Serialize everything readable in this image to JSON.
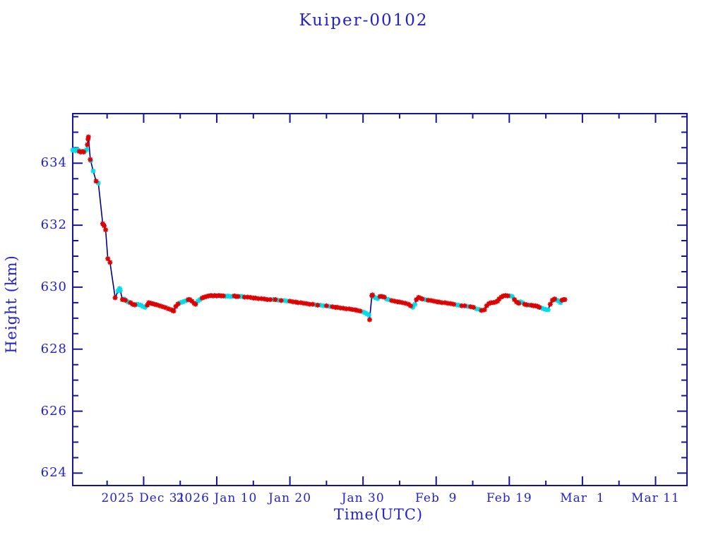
{
  "title": "Kuiper-00102",
  "colors": {
    "axis": "#15159a",
    "text": "#2222cc",
    "line": "#00008b",
    "marker_red": "#dd0000",
    "marker_cyan": "#00dde8",
    "background": "#ffffff"
  },
  "chart_data": {
    "type": "line",
    "title": "Kuiper-00102",
    "xlabel": "Time(UTC)",
    "ylabel": "Height (km)",
    "x_unit": "days relative to 2025 Dec 31",
    "xlim": [
      -9.7,
      74.3
    ],
    "ylim": [
      623.6,
      635.6
    ],
    "grid": false,
    "legend": "none",
    "x_major_ticks": [
      {
        "t": 0,
        "label": "2025 Dec 31"
      },
      {
        "t": 10,
        "label": "2026 Jan 10"
      },
      {
        "t": 20,
        "label": "Jan 20"
      },
      {
        "t": 30,
        "label": "Jan 30"
      },
      {
        "t": 40,
        "label": "Feb  9"
      },
      {
        "t": 50,
        "label": "Feb 19"
      },
      {
        "t": 60,
        "label": "Mar  1"
      },
      {
        "t": 70,
        "label": "Mar 11"
      }
    ],
    "x_minor_ticks": [
      -5,
      5,
      15,
      25,
      35,
      45,
      55,
      65
    ],
    "y_major_ticks": [
      {
        "v": 624,
        "label": "624"
      },
      {
        "v": 626,
        "label": "626"
      },
      {
        "v": 628,
        "label": "628"
      },
      {
        "v": 630,
        "label": "630"
      },
      {
        "v": 632,
        "label": "632"
      },
      {
        "v": 634,
        "label": "634"
      }
    ],
    "y_minor_step": 0.5,
    "series": [
      {
        "name": "height",
        "marker": "asterisk",
        "points": [
          [
            -9.7,
            634.42,
            "c"
          ],
          [
            -9.5,
            634.44,
            "c"
          ],
          [
            -9.3,
            634.4,
            "c"
          ],
          [
            -9.1,
            634.44,
            "c"
          ],
          [
            -8.9,
            634.42,
            "c"
          ],
          [
            -8.8,
            634.38,
            "r"
          ],
          [
            -8.6,
            634.36,
            "r"
          ],
          [
            -8.4,
            634.38,
            "r"
          ],
          [
            -8.2,
            634.36,
            "r"
          ],
          [
            -8.0,
            634.4,
            "c"
          ],
          [
            -7.8,
            634.44,
            "c"
          ],
          [
            -7.7,
            634.6,
            "r"
          ],
          [
            -7.6,
            634.78,
            "r"
          ],
          [
            -7.55,
            634.85,
            "r"
          ],
          [
            -7.3,
            634.12,
            "r"
          ],
          [
            -7.25,
            634.08,
            "c"
          ],
          [
            -6.9,
            633.75,
            "c"
          ],
          [
            -6.5,
            633.42,
            "r"
          ],
          [
            -6.2,
            633.36,
            "c"
          ],
          [
            -5.6,
            632.05,
            "r"
          ],
          [
            -5.4,
            631.98,
            "r"
          ],
          [
            -5.2,
            631.85,
            "r"
          ],
          [
            -4.9,
            630.92,
            "r"
          ],
          [
            -4.6,
            630.8,
            "r"
          ],
          [
            -3.9,
            629.66,
            "r"
          ],
          [
            -3.5,
            629.88,
            "c"
          ],
          [
            -3.3,
            629.96,
            "c"
          ],
          [
            -3.2,
            629.9,
            "c"
          ],
          [
            -2.9,
            629.6,
            "r"
          ],
          [
            -2.7,
            629.62,
            "c"
          ],
          [
            -2.5,
            629.58,
            "r"
          ],
          [
            -2.3,
            629.55,
            "c"
          ],
          [
            -2.1,
            629.52,
            "c"
          ],
          [
            -1.8,
            629.5,
            "r"
          ],
          [
            -1.5,
            629.45,
            "r"
          ],
          [
            -1.2,
            629.43,
            "r"
          ],
          [
            -1.0,
            629.45,
            "c"
          ],
          [
            -0.7,
            629.44,
            "c"
          ],
          [
            -0.4,
            629.42,
            "c"
          ],
          [
            -0.1,
            629.38,
            "c"
          ],
          [
            0.2,
            629.35,
            "c"
          ],
          [
            0.5,
            629.42,
            "r"
          ],
          [
            0.7,
            629.5,
            "r"
          ],
          [
            1.0,
            629.48,
            "r"
          ],
          [
            1.3,
            629.46,
            "r"
          ],
          [
            1.5,
            629.45,
            "r"
          ],
          [
            1.8,
            629.43,
            "r"
          ],
          [
            2.2,
            629.4,
            "r"
          ],
          [
            2.6,
            629.37,
            "r"
          ],
          [
            3.0,
            629.34,
            "r"
          ],
          [
            3.4,
            629.3,
            "r"
          ],
          [
            3.8,
            629.27,
            "r"
          ],
          [
            4.1,
            629.23,
            "r"
          ],
          [
            4.4,
            629.38,
            "r"
          ],
          [
            4.7,
            629.46,
            "r"
          ],
          [
            5.0,
            629.5,
            "c"
          ],
          [
            5.3,
            629.52,
            "c"
          ],
          [
            5.6,
            629.55,
            "c"
          ],
          [
            5.9,
            629.57,
            "c"
          ],
          [
            6.1,
            629.6,
            "r"
          ],
          [
            6.3,
            629.6,
            "r"
          ],
          [
            6.6,
            629.55,
            "r"
          ],
          [
            6.9,
            629.48,
            "r"
          ],
          [
            7.1,
            629.45,
            "r"
          ],
          [
            7.4,
            629.55,
            "c"
          ],
          [
            7.7,
            629.6,
            "c"
          ],
          [
            8.0,
            629.65,
            "r"
          ],
          [
            8.3,
            629.68,
            "r"
          ],
          [
            8.6,
            629.7,
            "r"
          ],
          [
            8.9,
            629.72,
            "r"
          ],
          [
            9.2,
            629.73,
            "r"
          ],
          [
            9.5,
            629.72,
            "r"
          ],
          [
            9.7,
            629.73,
            "r"
          ],
          [
            10.0,
            629.72,
            "r"
          ],
          [
            10.3,
            629.73,
            "r"
          ],
          [
            10.6,
            629.72,
            "r"
          ],
          [
            10.9,
            629.72,
            "r"
          ],
          [
            11.2,
            629.7,
            "c"
          ],
          [
            11.5,
            629.72,
            "c"
          ],
          [
            11.8,
            629.7,
            "c"
          ],
          [
            12.1,
            629.7,
            "c"
          ],
          [
            12.4,
            629.72,
            "r"
          ],
          [
            12.6,
            629.7,
            "r"
          ],
          [
            12.9,
            629.7,
            "r"
          ],
          [
            13.2,
            629.7,
            "c"
          ],
          [
            13.5,
            629.7,
            "c"
          ],
          [
            13.8,
            629.68,
            "r"
          ],
          [
            14.2,
            629.68,
            "r"
          ],
          [
            14.6,
            629.67,
            "r"
          ],
          [
            15.0,
            629.65,
            "r"
          ],
          [
            15.3,
            629.65,
            "r"
          ],
          [
            15.7,
            629.63,
            "r"
          ],
          [
            16.1,
            629.63,
            "r"
          ],
          [
            16.5,
            629.62,
            "r"
          ],
          [
            16.9,
            629.6,
            "r"
          ],
          [
            17.3,
            629.6,
            "r"
          ],
          [
            17.7,
            629.6,
            "c"
          ],
          [
            18.0,
            629.6,
            "r"
          ],
          [
            18.4,
            629.58,
            "c"
          ],
          [
            18.8,
            629.57,
            "r"
          ],
          [
            19.2,
            629.57,
            "c"
          ],
          [
            19.6,
            629.55,
            "c"
          ],
          [
            20.0,
            629.55,
            "r"
          ],
          [
            20.4,
            629.53,
            "r"
          ],
          [
            20.8,
            629.52,
            "r"
          ],
          [
            21.1,
            629.5,
            "r"
          ],
          [
            21.5,
            629.5,
            "r"
          ],
          [
            21.9,
            629.48,
            "r"
          ],
          [
            22.3,
            629.47,
            "r"
          ],
          [
            22.7,
            629.45,
            "r"
          ],
          [
            23.1,
            629.45,
            "r"
          ],
          [
            23.5,
            629.43,
            "c"
          ],
          [
            23.8,
            629.42,
            "r"
          ],
          [
            24.2,
            629.42,
            "c"
          ],
          [
            24.6,
            629.4,
            "c"
          ],
          [
            25.0,
            629.4,
            "r"
          ],
          [
            25.4,
            629.38,
            "c"
          ],
          [
            25.8,
            629.37,
            "r"
          ],
          [
            26.2,
            629.35,
            "r"
          ],
          [
            26.5,
            629.35,
            "r"
          ],
          [
            26.9,
            629.33,
            "r"
          ],
          [
            27.3,
            629.32,
            "r"
          ],
          [
            27.7,
            629.3,
            "r"
          ],
          [
            28.1,
            629.3,
            "r"
          ],
          [
            28.5,
            629.28,
            "r"
          ],
          [
            28.9,
            629.27,
            "r"
          ],
          [
            29.2,
            629.25,
            "r"
          ],
          [
            29.6,
            629.23,
            "r"
          ],
          [
            30.0,
            629.2,
            "c"
          ],
          [
            30.3,
            629.17,
            "c"
          ],
          [
            30.6,
            629.13,
            "c"
          ],
          [
            30.8,
            629.1,
            "c"
          ],
          [
            30.9,
            628.95,
            "r"
          ],
          [
            31.2,
            629.73,
            "r"
          ],
          [
            31.3,
            629.75,
            "r"
          ],
          [
            31.5,
            629.68,
            "c"
          ],
          [
            31.8,
            629.65,
            "c"
          ],
          [
            32.0,
            629.63,
            "c"
          ],
          [
            32.3,
            629.7,
            "r"
          ],
          [
            32.6,
            629.7,
            "r"
          ],
          [
            32.9,
            629.68,
            "r"
          ],
          [
            33.2,
            629.62,
            "c"
          ],
          [
            33.5,
            629.6,
            "c"
          ],
          [
            33.9,
            629.57,
            "r"
          ],
          [
            34.3,
            629.55,
            "r"
          ],
          [
            34.7,
            629.53,
            "r"
          ],
          [
            35.0,
            629.52,
            "r"
          ],
          [
            35.4,
            629.5,
            "r"
          ],
          [
            35.8,
            629.48,
            "r"
          ],
          [
            36.2,
            629.45,
            "r"
          ],
          [
            36.5,
            629.4,
            "r"
          ],
          [
            36.8,
            629.35,
            "c"
          ],
          [
            37.1,
            629.45,
            "c"
          ],
          [
            37.3,
            629.6,
            "r"
          ],
          [
            37.6,
            629.67,
            "r"
          ],
          [
            37.8,
            629.65,
            "r"
          ],
          [
            38.1,
            629.62,
            "r"
          ],
          [
            38.5,
            629.6,
            "c"
          ],
          [
            38.9,
            629.58,
            "r"
          ],
          [
            39.3,
            629.57,
            "r"
          ],
          [
            39.7,
            629.55,
            "r"
          ],
          [
            40.1,
            629.53,
            "r"
          ],
          [
            40.4,
            629.52,
            "r"
          ],
          [
            40.8,
            629.5,
            "r"
          ],
          [
            41.2,
            629.5,
            "r"
          ],
          [
            41.6,
            629.48,
            "r"
          ],
          [
            42.0,
            629.47,
            "r"
          ],
          [
            42.4,
            629.45,
            "r"
          ],
          [
            42.8,
            629.43,
            "c"
          ],
          [
            43.1,
            629.42,
            "c"
          ],
          [
            43.5,
            629.4,
            "r"
          ],
          [
            43.9,
            629.4,
            "r"
          ],
          [
            44.3,
            629.38,
            "c"
          ],
          [
            44.7,
            629.37,
            "r"
          ],
          [
            45.1,
            629.35,
            "r"
          ],
          [
            45.5,
            629.3,
            "c"
          ],
          [
            45.9,
            629.28,
            "c"
          ],
          [
            46.2,
            629.25,
            "r"
          ],
          [
            46.6,
            629.27,
            "r"
          ],
          [
            46.9,
            629.4,
            "r"
          ],
          [
            47.2,
            629.47,
            "r"
          ],
          [
            47.5,
            629.5,
            "r"
          ],
          [
            47.8,
            629.5,
            "r"
          ],
          [
            48.1,
            629.52,
            "r"
          ],
          [
            48.4,
            629.55,
            "r"
          ],
          [
            48.6,
            629.62,
            "r"
          ],
          [
            48.9,
            629.68,
            "r"
          ],
          [
            49.2,
            629.72,
            "r"
          ],
          [
            49.5,
            629.73,
            "r"
          ],
          [
            49.8,
            629.72,
            "r"
          ],
          [
            50.1,
            629.72,
            "c"
          ],
          [
            50.4,
            629.7,
            "c"
          ],
          [
            50.7,
            629.6,
            "r"
          ],
          [
            51.0,
            629.52,
            "r"
          ],
          [
            51.3,
            629.48,
            "r"
          ],
          [
            51.5,
            629.53,
            "c"
          ],
          [
            51.8,
            629.5,
            "c"
          ],
          [
            52.1,
            629.45,
            "r"
          ],
          [
            52.4,
            629.43,
            "r"
          ],
          [
            52.7,
            629.42,
            "c"
          ],
          [
            53.0,
            629.42,
            "r"
          ],
          [
            53.3,
            629.4,
            "r"
          ],
          [
            53.6,
            629.4,
            "r"
          ],
          [
            53.9,
            629.38,
            "r"
          ],
          [
            54.1,
            629.35,
            "r"
          ],
          [
            54.4,
            629.33,
            "c"
          ],
          [
            54.7,
            629.3,
            "c"
          ],
          [
            55.0,
            629.28,
            "c"
          ],
          [
            55.3,
            629.27,
            "c"
          ],
          [
            55.6,
            629.45,
            "r"
          ],
          [
            55.9,
            629.58,
            "r"
          ],
          [
            56.2,
            629.62,
            "r"
          ],
          [
            56.5,
            629.58,
            "c"
          ],
          [
            56.8,
            629.55,
            "c"
          ],
          [
            57.0,
            629.5,
            "c"
          ],
          [
            57.2,
            629.58,
            "r"
          ],
          [
            57.4,
            629.6,
            "r"
          ],
          [
            57.6,
            629.6,
            "r"
          ]
        ]
      }
    ]
  }
}
